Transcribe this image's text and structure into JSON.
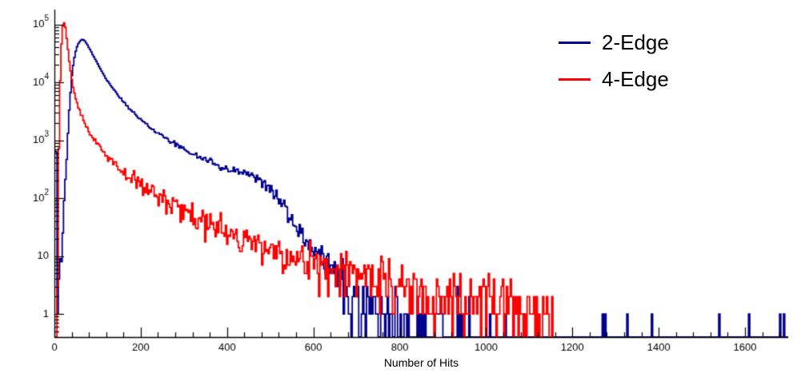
{
  "figure": {
    "background": "#ffffff",
    "axis_color": "#000000"
  },
  "legend": {
    "position": "top-right",
    "items": [
      {
        "label": "2-Edge",
        "color": "#00008b"
      },
      {
        "label": "4-Edge",
        "color": "#ff0000"
      }
    ]
  },
  "chart_data": {
    "type": "line",
    "subtype": "histogram-step-log",
    "title": "",
    "xlabel": "Number of Hits",
    "ylabel": "",
    "grid": false,
    "legend_position": "top-right",
    "x_range": [
      0,
      1700
    ],
    "y_range": [
      0.4,
      180000
    ],
    "y_scale": "log",
    "x_ticks": [
      0,
      200,
      400,
      600,
      800,
      1000,
      1200,
      1400,
      1600
    ],
    "x_minor_step": 40,
    "y_ticks": [
      1,
      10,
      100,
      1000,
      10000,
      100000
    ],
    "y_tick_labels": [
      "1",
      "10",
      "10^2",
      "10^3",
      "10^4",
      "10^5"
    ],
    "seed": 12,
    "bin_width": 3,
    "series": [
      {
        "name": "2-Edge",
        "color": "#00008b",
        "noise_scale": 1.3,
        "anchors": [
          [
            1,
            600
          ],
          [
            5,
            600
          ],
          [
            8,
            2
          ],
          [
            12,
            4
          ],
          [
            16,
            10
          ],
          [
            20,
            35
          ],
          [
            24,
            120
          ],
          [
            28,
            450
          ],
          [
            32,
            1600
          ],
          [
            36,
            5000
          ],
          [
            40,
            12000
          ],
          [
            44,
            21000
          ],
          [
            48,
            31000
          ],
          [
            52,
            40000
          ],
          [
            56,
            47000
          ],
          [
            60,
            52000
          ],
          [
            64,
            55000
          ],
          [
            68,
            54000
          ],
          [
            72,
            50000
          ],
          [
            76,
            45000
          ],
          [
            80,
            40000
          ],
          [
            86,
            33000
          ],
          [
            92,
            27000
          ],
          [
            100,
            21000
          ],
          [
            110,
            15500
          ],
          [
            120,
            11500
          ],
          [
            130,
            8800
          ],
          [
            140,
            7000
          ],
          [
            150,
            5600
          ],
          [
            160,
            4600
          ],
          [
            170,
            3800
          ],
          [
            180,
            3200
          ],
          [
            190,
            2700
          ],
          [
            200,
            2300
          ],
          [
            215,
            1850
          ],
          [
            230,
            1500
          ],
          [
            245,
            1250
          ],
          [
            260,
            1050
          ],
          [
            275,
            900
          ],
          [
            290,
            780
          ],
          [
            305,
            680
          ],
          [
            320,
            590
          ],
          [
            335,
            520
          ],
          [
            350,
            460
          ],
          [
            365,
            410
          ],
          [
            380,
            360
          ],
          [
            395,
            325
          ],
          [
            410,
            300
          ],
          [
            425,
            290
          ],
          [
            440,
            280
          ],
          [
            455,
            255
          ],
          [
            470,
            225
          ],
          [
            485,
            185
          ],
          [
            500,
            140
          ],
          [
            515,
            100
          ],
          [
            530,
            70
          ],
          [
            545,
            48
          ],
          [
            560,
            33
          ],
          [
            575,
            23
          ],
          [
            590,
            17
          ],
          [
            605,
            13
          ],
          [
            620,
            10
          ],
          [
            635,
            7.5
          ],
          [
            650,
            5.5
          ],
          [
            665,
            4.2
          ],
          [
            680,
            3.2
          ],
          [
            695,
            2.4
          ],
          [
            710,
            1.9
          ],
          [
            730,
            1.4
          ],
          [
            750,
            1.1
          ],
          [
            775,
            0.85
          ],
          [
            800,
            0.7
          ],
          [
            830,
            0.55
          ],
          [
            860,
            0.45
          ],
          [
            900,
            0.38
          ],
          [
            950,
            0.3
          ],
          [
            1000,
            0.15
          ],
          [
            1050,
            0.08
          ],
          [
            1100,
            0.06
          ],
          [
            1150,
            0.05
          ],
          [
            1200,
            0.05
          ],
          [
            1250,
            0.04
          ],
          [
            1300,
            0.03
          ],
          [
            1350,
            0.03
          ],
          [
            1400,
            0.03
          ],
          [
            1450,
            0.02
          ],
          [
            1500,
            0.02
          ],
          [
            1550,
            0.02
          ],
          [
            1600,
            0.02
          ],
          [
            1650,
            0.03
          ],
          [
            1700,
            0.03
          ]
        ]
      },
      {
        "name": "4-Edge",
        "color": "#ff0000",
        "noise_scale": 2.0,
        "anchors": [
          [
            7,
            1
          ],
          [
            10,
            400
          ],
          [
            13,
            8000
          ],
          [
            16,
            40000
          ],
          [
            19,
            90000
          ],
          [
            22,
            108000
          ],
          [
            25,
            95000
          ],
          [
            28,
            62000
          ],
          [
            31,
            40000
          ],
          [
            35,
            22000
          ],
          [
            40,
            11500
          ],
          [
            45,
            7200
          ],
          [
            50,
            5100
          ],
          [
            57,
            3400
          ],
          [
            64,
            2500
          ],
          [
            72,
            1900
          ],
          [
            80,
            1450
          ],
          [
            90,
            1080
          ],
          [
            100,
            870
          ],
          [
            112,
            660
          ],
          [
            124,
            520
          ],
          [
            136,
            420
          ],
          [
            150,
            330
          ],
          [
            164,
            265
          ],
          [
            178,
            215
          ],
          [
            192,
            180
          ],
          [
            206,
            152
          ],
          [
            222,
            127
          ],
          [
            238,
            107
          ],
          [
            255,
            90
          ],
          [
            272,
            77
          ],
          [
            290,
            65
          ],
          [
            310,
            55
          ],
          [
            330,
            47
          ],
          [
            350,
            40
          ],
          [
            375,
            33
          ],
          [
            400,
            27
          ],
          [
            430,
            22
          ],
          [
            460,
            18
          ],
          [
            490,
            15
          ],
          [
            520,
            12.5
          ],
          [
            550,
            10.5
          ],
          [
            580,
            9
          ],
          [
            610,
            7.8
          ],
          [
            640,
            6.8
          ],
          [
            670,
            5.8
          ],
          [
            700,
            5
          ],
          [
            740,
            4.2
          ],
          [
            780,
            3.6
          ],
          [
            820,
            3.1
          ],
          [
            860,
            2.7
          ],
          [
            900,
            2.4
          ],
          [
            950,
            2.1
          ],
          [
            1000,
            1.8
          ],
          [
            1050,
            1.5
          ],
          [
            1100,
            1.2
          ],
          [
            1130,
            1.0
          ],
          [
            1155,
            0.8
          ]
        ]
      }
    ]
  }
}
